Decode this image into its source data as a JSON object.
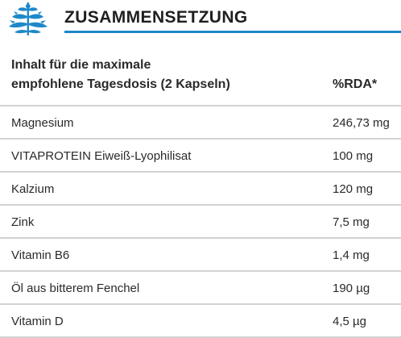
{
  "header": {
    "title": "ZUSAMMENSETZUNG",
    "logo_icon": "herb-plant-icon",
    "accent_color": "#1e88c8"
  },
  "table": {
    "intro_line1": "Inhalt für die maximale",
    "intro_line2": "empfohlene Tagesdosis (2 Kapseln)",
    "rda_header": "%RDA*",
    "rows": [
      {
        "name": "Magnesium",
        "value": "246,73 mg"
      },
      {
        "name": "VITAPROTEIN Eiweiß-Lyophilisat",
        "value": "100 mg"
      },
      {
        "name": "Kalzium",
        "value": "120 mg"
      },
      {
        "name": "Zink",
        "value": "7,5 mg"
      },
      {
        "name": "Vitamin B6",
        "value": "1,4 mg"
      },
      {
        "name": "Öl aus bitterem Fenchel",
        "value": "190 µg"
      },
      {
        "name": "Vitamin D",
        "value": "4,5 µg"
      }
    ]
  }
}
